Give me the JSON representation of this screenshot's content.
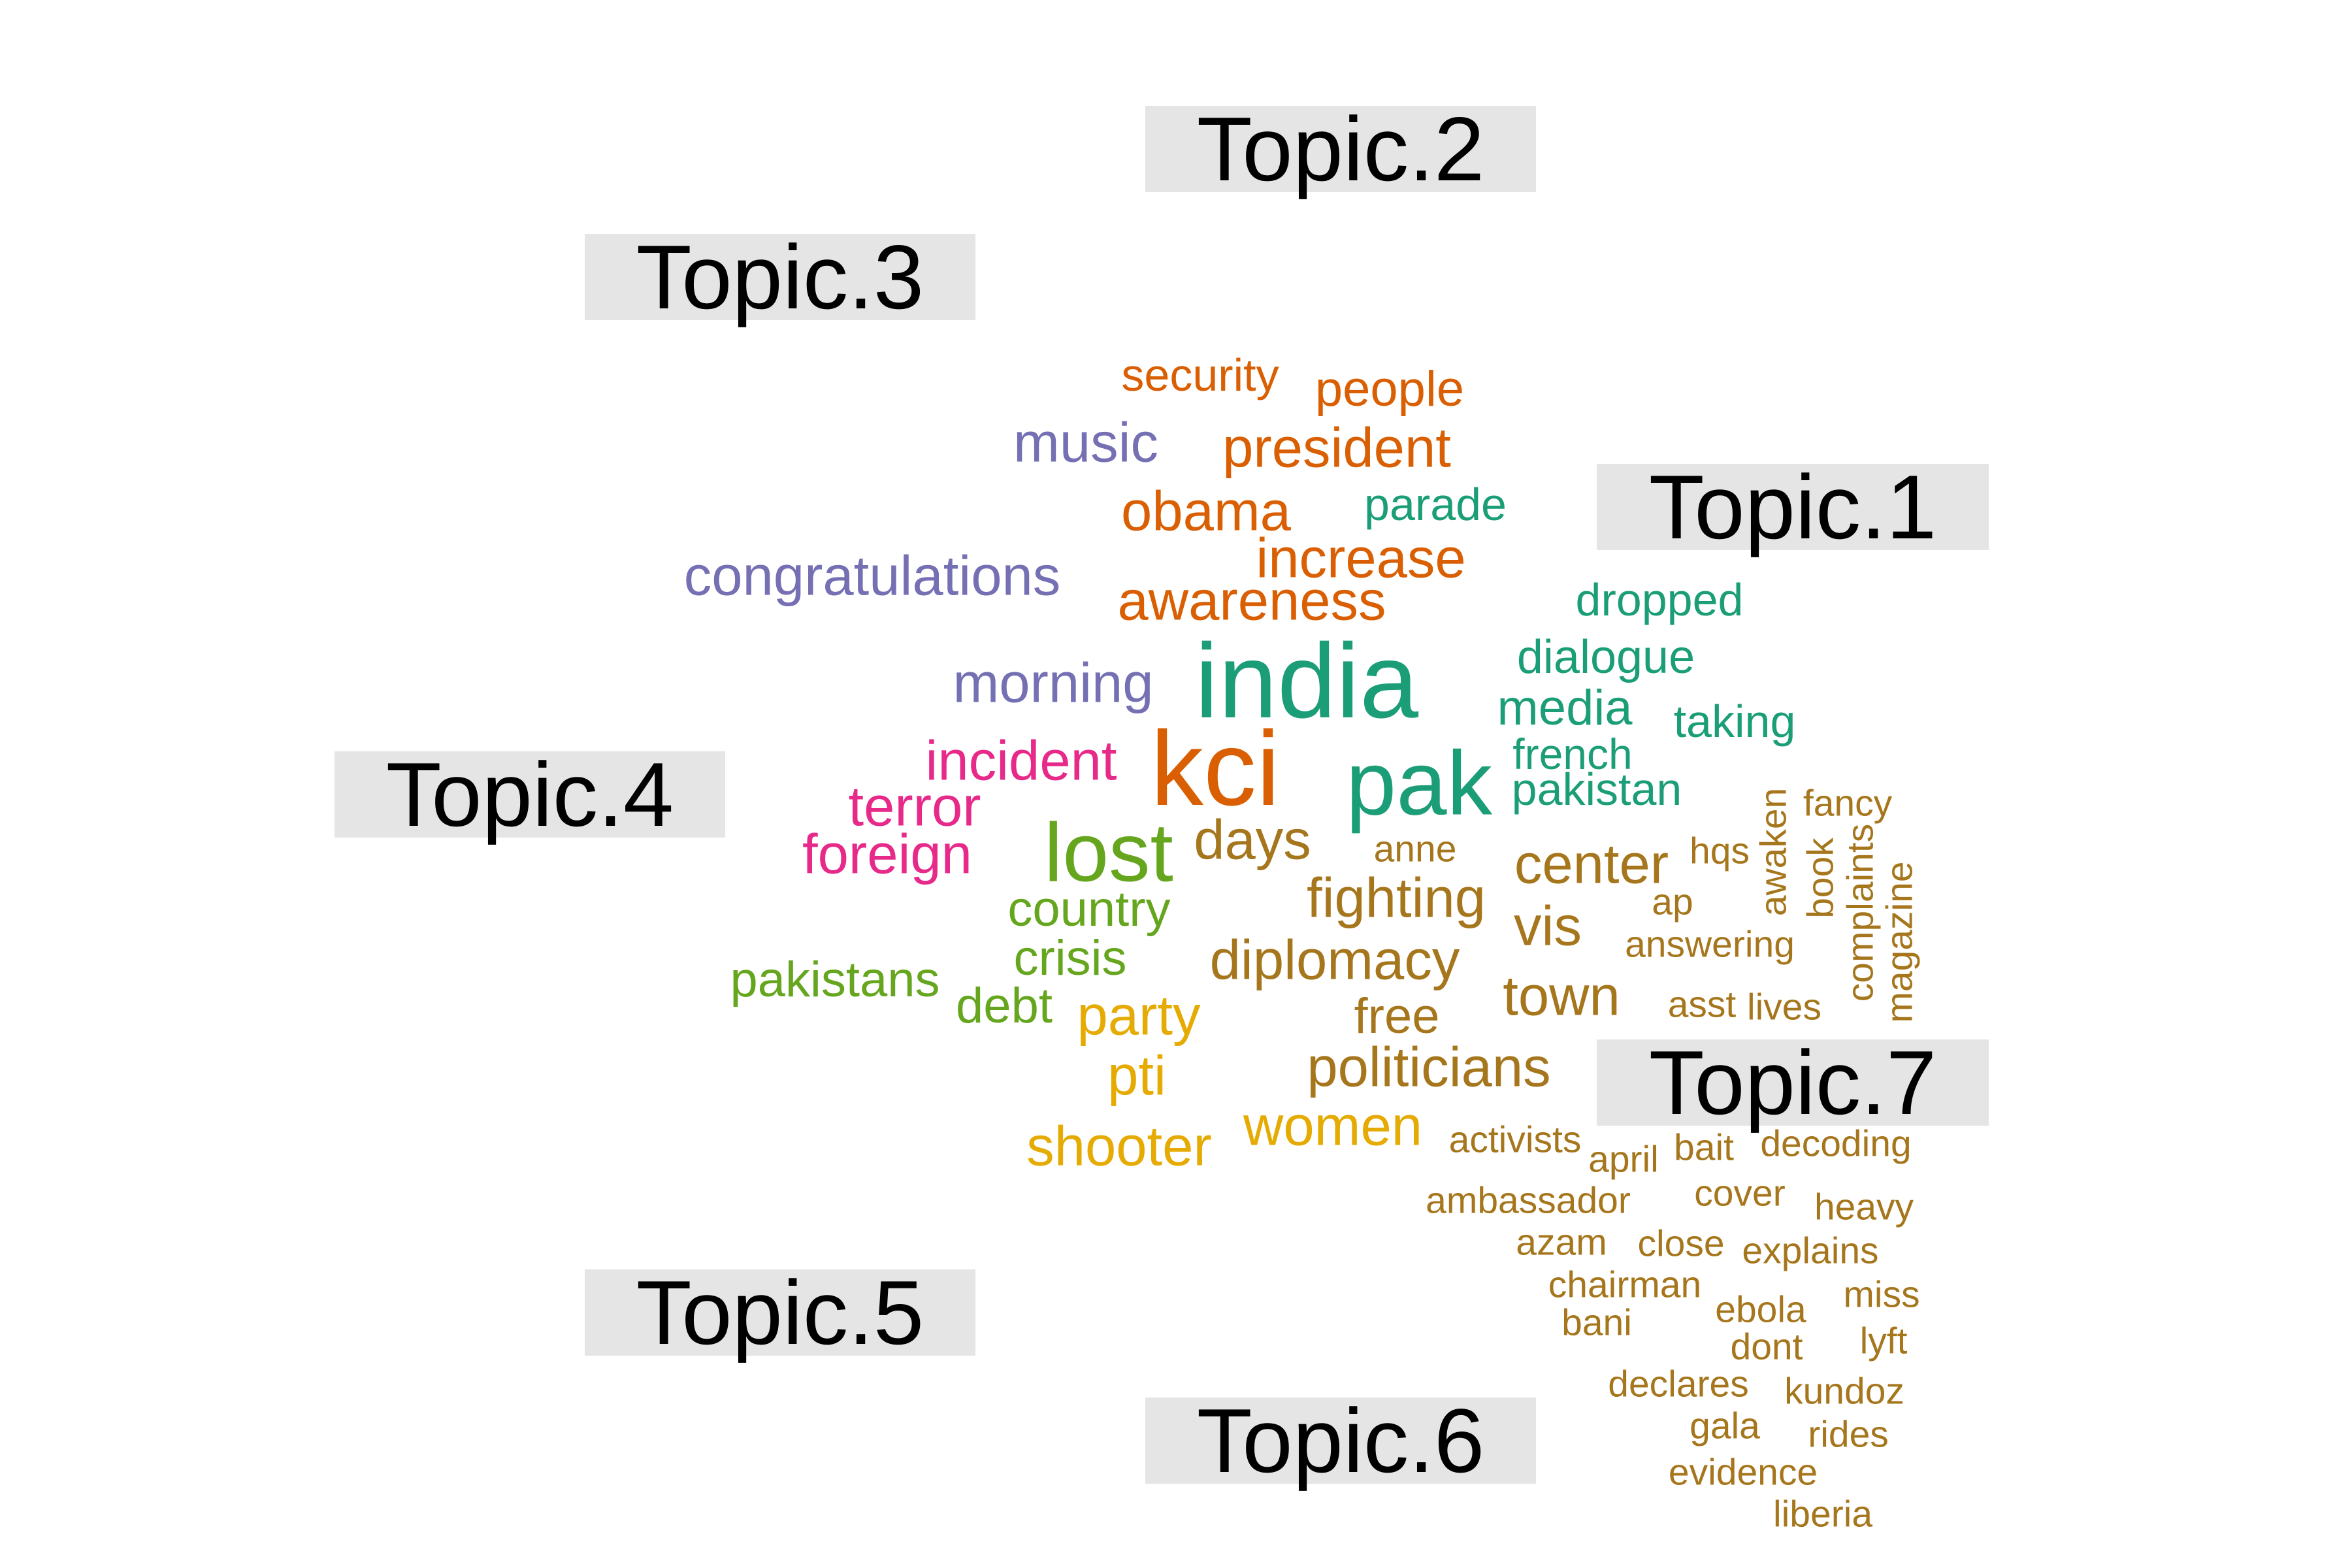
{
  "colors": {
    "topic_1": "#1b9e77",
    "topic_2": "#d95f02",
    "topic_3": "#7570b3",
    "topic_4": "#e7298a",
    "topic_5": "#66a61e",
    "topic_6": "#e6ab02",
    "topic_7": "#a6761d",
    "label_bg": "#e5e5e5"
  },
  "topics": [
    "Topic.1",
    "Topic.2",
    "Topic.3",
    "Topic.4",
    "Topic.5",
    "Topic.6",
    "Topic.7"
  ],
  "words": [
    {
      "text": "india",
      "topic": "topic_1"
    },
    {
      "text": "pak",
      "topic": "topic_1"
    },
    {
      "text": "dialogue",
      "topic": "topic_1"
    },
    {
      "text": "dropped",
      "topic": "topic_1"
    },
    {
      "text": "media",
      "topic": "topic_1"
    },
    {
      "text": "taking",
      "topic": "topic_1"
    },
    {
      "text": "french",
      "topic": "topic_1"
    },
    {
      "text": "pakistan",
      "topic": "topic_1"
    },
    {
      "text": "parade",
      "topic": "topic_1"
    },
    {
      "text": "kci",
      "topic": "topic_2"
    },
    {
      "text": "security",
      "topic": "topic_2"
    },
    {
      "text": "people",
      "topic": "topic_2"
    },
    {
      "text": "president",
      "topic": "topic_2"
    },
    {
      "text": "obama",
      "topic": "topic_2"
    },
    {
      "text": "increase",
      "topic": "topic_2"
    },
    {
      "text": "awareness",
      "topic": "topic_2"
    },
    {
      "text": "music",
      "topic": "topic_3"
    },
    {
      "text": "congratulations",
      "topic": "topic_3"
    },
    {
      "text": "morning",
      "topic": "topic_3"
    },
    {
      "text": "incident",
      "topic": "topic_4"
    },
    {
      "text": "terror",
      "topic": "topic_4"
    },
    {
      "text": "foreign",
      "topic": "topic_4"
    },
    {
      "text": "lost",
      "topic": "topic_5"
    },
    {
      "text": "country",
      "topic": "topic_5"
    },
    {
      "text": "crisis",
      "topic": "topic_5"
    },
    {
      "text": "pakistans",
      "topic": "topic_5"
    },
    {
      "text": "debt",
      "topic": "topic_5"
    },
    {
      "text": "party",
      "topic": "topic_6"
    },
    {
      "text": "pti",
      "topic": "topic_6"
    },
    {
      "text": "shooter",
      "topic": "topic_6"
    },
    {
      "text": "women",
      "topic": "topic_6"
    },
    {
      "text": "days",
      "topic": "topic_7"
    },
    {
      "text": "fighting",
      "topic": "topic_7"
    },
    {
      "text": "diplomacy",
      "topic": "topic_7"
    },
    {
      "text": "free",
      "topic": "topic_7"
    },
    {
      "text": "politicians",
      "topic": "topic_7"
    },
    {
      "text": "center",
      "topic": "topic_7"
    },
    {
      "text": "vis",
      "topic": "topic_7"
    },
    {
      "text": "town",
      "topic": "topic_7"
    },
    {
      "text": "anne",
      "topic": "topic_7"
    },
    {
      "text": "hqs",
      "topic": "topic_7"
    },
    {
      "text": "ap",
      "topic": "topic_7"
    },
    {
      "text": "answering",
      "topic": "topic_7"
    },
    {
      "text": "asst",
      "topic": "topic_7"
    },
    {
      "text": "lives",
      "topic": "topic_7"
    },
    {
      "text": "awaken",
      "topic": "topic_7"
    },
    {
      "text": "book",
      "topic": "topic_7"
    },
    {
      "text": "complaints",
      "topic": "topic_7"
    },
    {
      "text": "magazine",
      "topic": "topic_7"
    },
    {
      "text": "fancy",
      "topic": "topic_7"
    },
    {
      "text": "activists",
      "topic": "topic_7"
    },
    {
      "text": "april",
      "topic": "topic_7"
    },
    {
      "text": "bait",
      "topic": "topic_7"
    },
    {
      "text": "decoding",
      "topic": "topic_7"
    },
    {
      "text": "ambassador",
      "topic": "topic_7"
    },
    {
      "text": "cover",
      "topic": "topic_7"
    },
    {
      "text": "heavy",
      "topic": "topic_7"
    },
    {
      "text": "azam",
      "topic": "topic_7"
    },
    {
      "text": "close",
      "topic": "topic_7"
    },
    {
      "text": "explains",
      "topic": "topic_7"
    },
    {
      "text": "chairman",
      "topic": "topic_7"
    },
    {
      "text": "miss",
      "topic": "topic_7"
    },
    {
      "text": "bani",
      "topic": "topic_7"
    },
    {
      "text": "ebola",
      "topic": "topic_7"
    },
    {
      "text": "dont",
      "topic": "topic_7"
    },
    {
      "text": "lyft",
      "topic": "topic_7"
    },
    {
      "text": "declares",
      "topic": "topic_7"
    },
    {
      "text": "kundoz",
      "topic": "topic_7"
    },
    {
      "text": "gala",
      "topic": "topic_7"
    },
    {
      "text": "rides",
      "topic": "topic_7"
    },
    {
      "text": "evidence",
      "topic": "topic_7"
    },
    {
      "text": "liberia",
      "topic": "topic_7"
    }
  ]
}
